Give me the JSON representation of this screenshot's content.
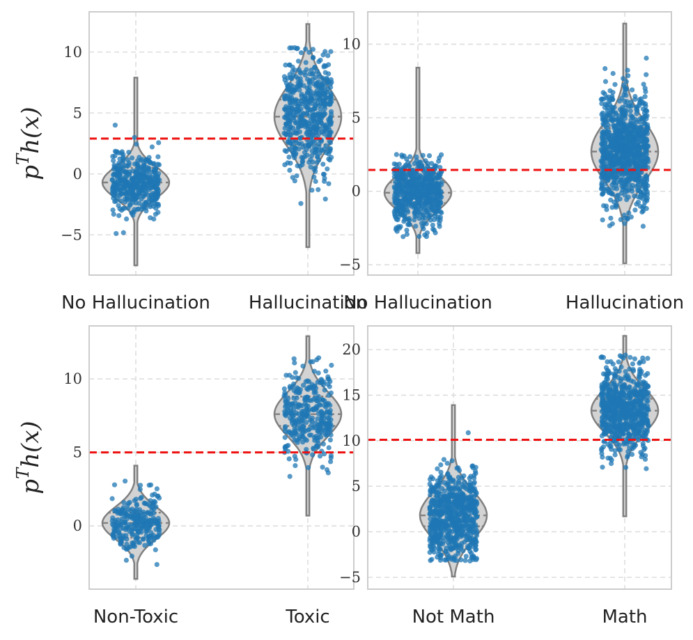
{
  "colors": {
    "points": "#1f77b4",
    "violin_fill": "#d3d3d3",
    "violin_edge": "#808080",
    "threshold": "#ee1111",
    "grid": "#dddddd",
    "frame": "#cccccc"
  },
  "chart_data": [
    {
      "type": "violin",
      "title": "",
      "ylabel": "p^T h(x)",
      "ylim": [
        -8.3,
        13.3
      ],
      "yticks": [
        -5,
        0,
        5,
        10
      ],
      "ytick_labels": [
        "−5",
        "0",
        "5",
        "10"
      ],
      "threshold": 2.9,
      "categories": [
        {
          "label": "No Hallucination",
          "center": -0.7,
          "q1": -1.7,
          "q3": 0.5,
          "min": -7.5,
          "max": 7.9,
          "spread": 1.3,
          "n": 420
        },
        {
          "label": "Hallucination",
          "center": 4.7,
          "q1": 2.4,
          "q3": 6.1,
          "min": -6.0,
          "max": 12.3,
          "spread": 2.5,
          "n": 520
        }
      ]
    },
    {
      "type": "violin",
      "title": "",
      "ylabel": "",
      "ylim": [
        -5.7,
        12.2
      ],
      "yticks": [
        -5,
        0,
        5,
        10
      ],
      "ytick_labels": [
        "−5",
        "0",
        "5",
        "10"
      ],
      "threshold": 1.45,
      "categories": [
        {
          "label": "No Hallucination",
          "center": -0.1,
          "q1": -0.8,
          "q3": 0.6,
          "min": -4.2,
          "max": 8.4,
          "spread": 1.2,
          "n": 600
        },
        {
          "label": "Hallucination",
          "center": 2.7,
          "q1": 1.2,
          "q3": 4.3,
          "min": -4.9,
          "max": 11.4,
          "spread": 2.0,
          "n": 900
        }
      ]
    },
    {
      "type": "violin",
      "title": "",
      "ylabel": "p^T h(x)",
      "ylim": [
        -4.3,
        13.6
      ],
      "yticks": [
        0,
        5,
        10
      ],
      "ytick_labels": [
        "0",
        "5",
        "10"
      ],
      "threshold": 5.0,
      "categories": [
        {
          "label": "Non-Toxic",
          "center": 0.2,
          "q1": -0.8,
          "q3": 0.9,
          "min": -3.6,
          "max": 4.1,
          "spread": 1.1,
          "n": 260
        },
        {
          "label": "Toxic",
          "center": 7.6,
          "q1": 6.8,
          "q3": 8.8,
          "min": 0.7,
          "max": 12.9,
          "spread": 1.5,
          "n": 320
        }
      ]
    },
    {
      "type": "violin",
      "title": "",
      "ylabel": "",
      "ylim": [
        -6.3,
        22.6
      ],
      "yticks": [
        -5,
        0,
        5,
        10,
        15,
        20
      ],
      "ytick_labels": [
        "−5",
        "0",
        "5",
        "10",
        "15",
        "20"
      ],
      "threshold": 10.1,
      "categories": [
        {
          "label": "Not Math",
          "center": 1.8,
          "q1": 0.6,
          "q3": 3.9,
          "min": -4.9,
          "max": 13.9,
          "spread": 2.6,
          "n": 700
        },
        {
          "label": "Math",
          "center": 13.3,
          "q1": 11.8,
          "q3": 14.6,
          "min": 1.7,
          "max": 21.5,
          "spread": 2.4,
          "n": 700
        }
      ]
    }
  ]
}
